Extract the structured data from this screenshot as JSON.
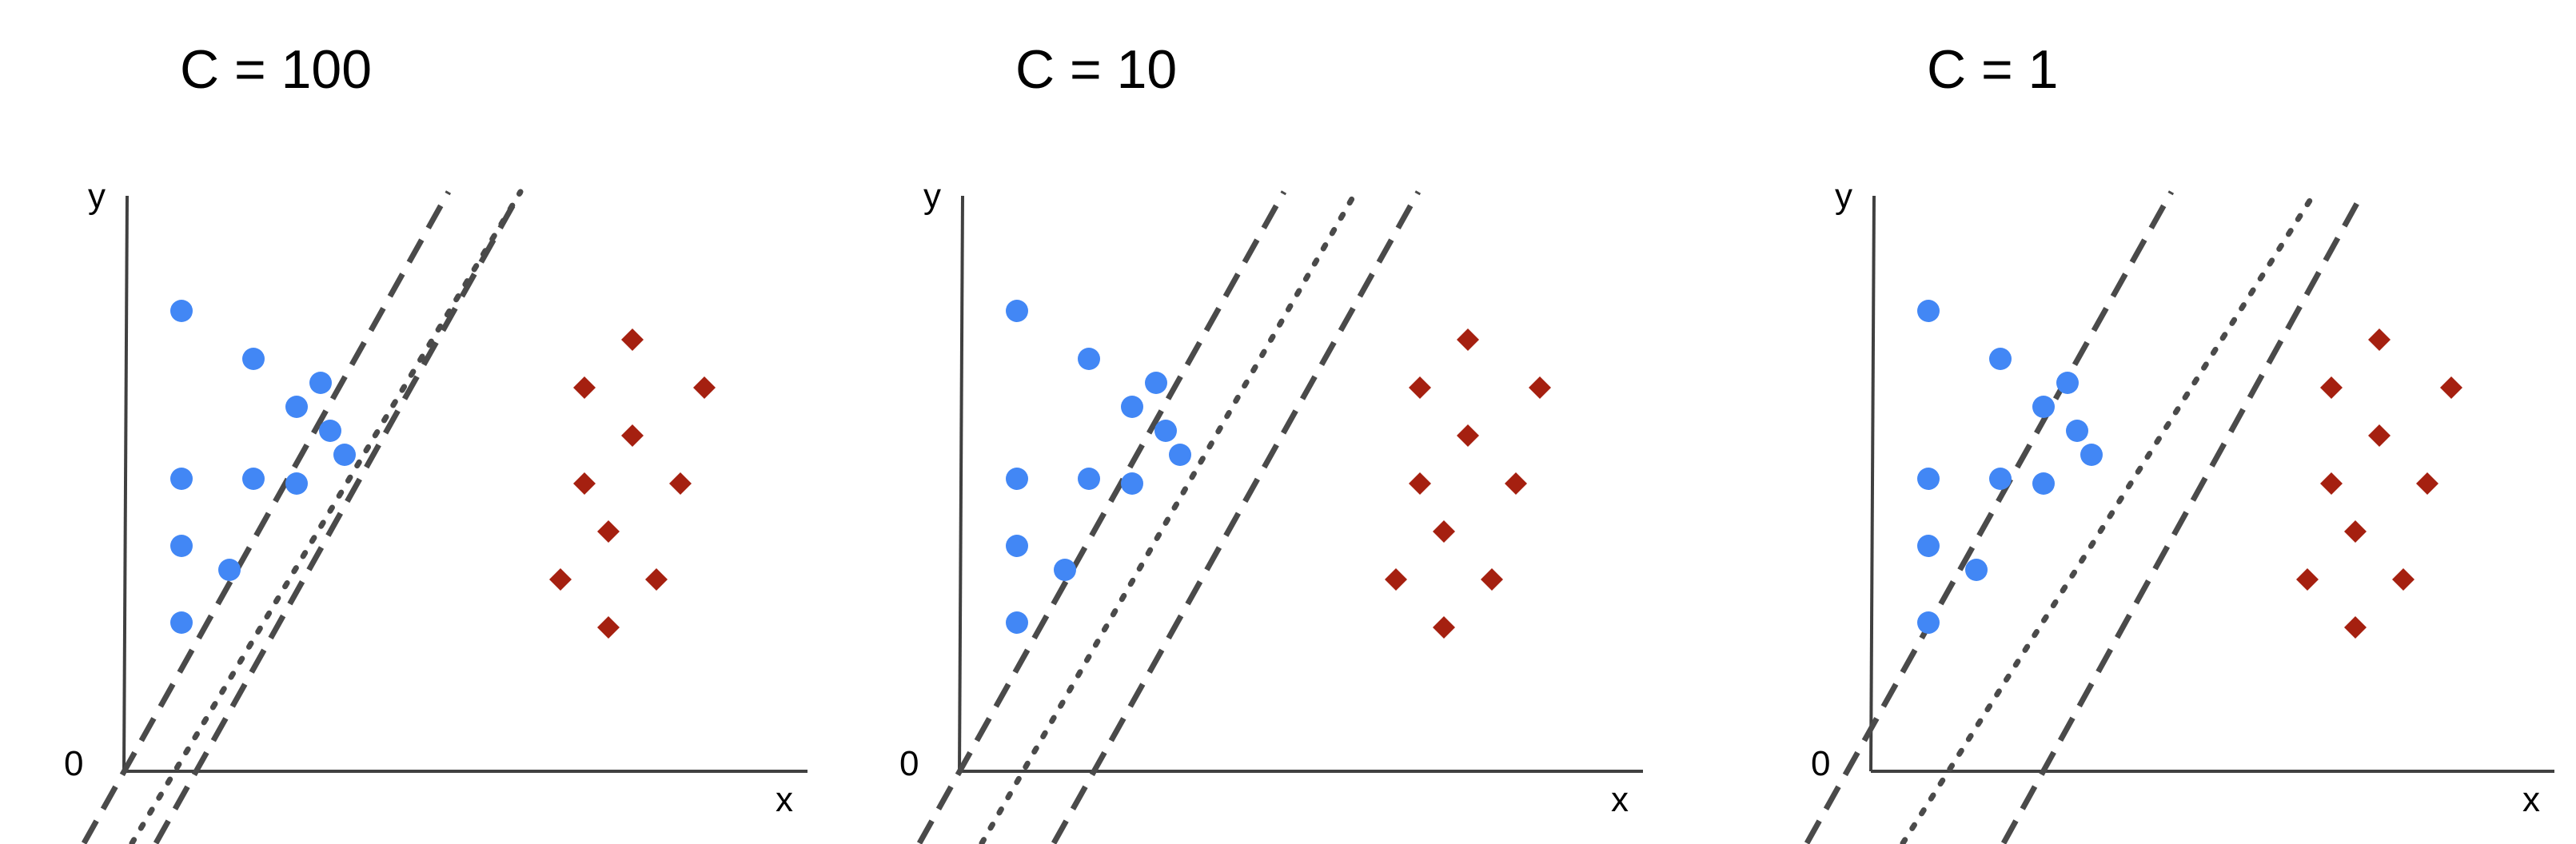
{
  "chart_data": [
    {
      "type": "scatter",
      "title": "C = 100",
      "xlabel": "x",
      "ylabel": "y",
      "origin_label": "0",
      "series": [
        {
          "marker": "circle",
          "color": "#4287f5",
          "points": [
            [
              1.2,
              9.6
            ],
            [
              2.7,
              8.6
            ],
            [
              4.1,
              8.1
            ],
            [
              3.6,
              7.6
            ],
            [
              1.2,
              6.1
            ],
            [
              2.7,
              6.1
            ],
            [
              3.6,
              6.0
            ],
            [
              4.6,
              6.6
            ],
            [
              1.2,
              4.7
            ],
            [
              2.2,
              4.2
            ],
            [
              1.2,
              3.1
            ],
            [
              4.3,
              7.1
            ]
          ]
        },
        {
          "marker": "diamond",
          "color": "#a52010",
          "points": [
            [
              10.6,
              9.0
            ],
            [
              9.6,
              8.0
            ],
            [
              12.1,
              8.0
            ],
            [
              10.6,
              7.0
            ],
            [
              9.6,
              6.0
            ],
            [
              11.6,
              6.0
            ],
            [
              10.1,
              5.0
            ],
            [
              9.1,
              4.0
            ],
            [
              11.1,
              4.0
            ],
            [
              10.1,
              3.0
            ]
          ]
        }
      ],
      "lines": [
        {
          "style": "dashed",
          "x_at_bottom": 0.5,
          "x_at_top": 8.1
        },
        {
          "style": "dotted",
          "x_at_bottom": 1.5,
          "x_at_top": 9.6
        },
        {
          "style": "dashed",
          "x_at_bottom": 2.0,
          "x_at_top": 9.6
        }
      ]
    },
    {
      "type": "scatter",
      "title": "C = 10",
      "xlabel": "x",
      "ylabel": "y",
      "origin_label": "0",
      "series": [
        {
          "marker": "circle",
          "color": "#4287f5",
          "points": [
            [
              1.2,
              9.6
            ],
            [
              2.7,
              8.6
            ],
            [
              4.1,
              8.1
            ],
            [
              3.6,
              7.6
            ],
            [
              1.2,
              6.1
            ],
            [
              2.7,
              6.1
            ],
            [
              3.6,
              6.0
            ],
            [
              4.6,
              6.6
            ],
            [
              1.2,
              4.7
            ],
            [
              2.2,
              4.2
            ],
            [
              1.2,
              3.1
            ],
            [
              4.3,
              7.1
            ]
          ]
        },
        {
          "marker": "diamond",
          "color": "#a52010",
          "points": [
            [
              10.6,
              9.0
            ],
            [
              9.6,
              8.0
            ],
            [
              12.1,
              8.0
            ],
            [
              10.6,
              7.0
            ],
            [
              9.6,
              6.0
            ],
            [
              11.6,
              6.0
            ],
            [
              10.1,
              5.0
            ],
            [
              9.1,
              4.0
            ],
            [
              11.1,
              4.0
            ],
            [
              10.1,
              3.0
            ]
          ]
        }
      ],
      "lines": [
        {
          "style": "dashed",
          "x_at_bottom": 0.5,
          "x_at_top": 8.1
        },
        {
          "style": "dotted",
          "x_at_bottom": 1.8,
          "x_at_top": 9.6
        },
        {
          "style": "dashed",
          "x_at_bottom": 3.3,
          "x_at_top": 10.9
        }
      ]
    },
    {
      "type": "scatter",
      "title": "C = 1",
      "xlabel": "x",
      "ylabel": "y",
      "origin_label": "0",
      "series": [
        {
          "marker": "circle",
          "color": "#4287f5",
          "points": [
            [
              1.2,
              9.6
            ],
            [
              2.7,
              8.6
            ],
            [
              4.1,
              8.1
            ],
            [
              3.6,
              7.6
            ],
            [
              1.2,
              6.1
            ],
            [
              2.7,
              6.1
            ],
            [
              3.6,
              6.0
            ],
            [
              4.6,
              6.6
            ],
            [
              1.2,
              4.7
            ],
            [
              2.2,
              4.2
            ],
            [
              1.2,
              3.1
            ],
            [
              4.3,
              7.1
            ]
          ]
        },
        {
          "marker": "diamond",
          "color": "#a52010",
          "points": [
            [
              10.6,
              9.0
            ],
            [
              9.6,
              8.0
            ],
            [
              12.1,
              8.0
            ],
            [
              10.6,
              7.0
            ],
            [
              9.6,
              6.0
            ],
            [
              11.6,
              6.0
            ],
            [
              10.1,
              5.0
            ],
            [
              9.1,
              4.0
            ],
            [
              11.1,
              4.0
            ],
            [
              10.1,
              3.0
            ]
          ]
        }
      ],
      "lines": [
        {
          "style": "dashed",
          "x_at_bottom": 0.0,
          "x_at_top": 7.6
        },
        {
          "style": "dotted",
          "x_at_bottom": 2.0,
          "x_at_top": 10.6
        },
        {
          "style": "dashed",
          "x_at_bottom": 4.1,
          "x_at_top": 11.6
        }
      ]
    }
  ]
}
